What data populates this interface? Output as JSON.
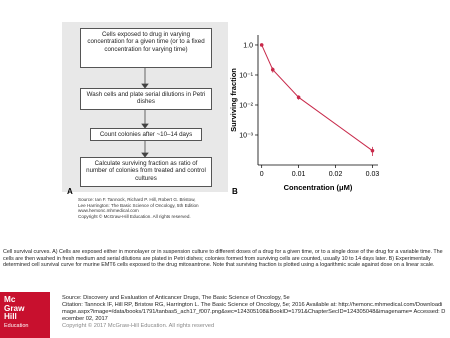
{
  "flowchart": {
    "label": "A",
    "steps": [
      "Cells exposed to drug in varying concentration for a given time (or to a fixed concentration for varying time)",
      "Wash cells and plate serial dilutions in Petri dishes",
      "Count colonies after ~10–14 days",
      "Calculate surviving fraction as ratio of number of colonies from treated and control cultures"
    ]
  },
  "source": [
    "Source: Ian F. Tannock, Richard P. Hill, Robert G. Bristow,",
    "Lee Harrington: The Basic Science of Oncology, 5th Edition",
    "www.hemonc.mhmedical.com",
    "Copyright © McGraw-Hill Education. All rights reserved."
  ],
  "chart_data": {
    "type": "line",
    "panel_label": "B",
    "x_label": "Concentration (μM)",
    "y_label": "Surviving fraction",
    "x": [
      0,
      0.003,
      0.01,
      0.03
    ],
    "series": [
      {
        "color": "#c8294a",
        "values": [
          1.0,
          0.15,
          0.018,
          0.0003
        ],
        "errors": [
          0.1,
          0.03,
          0.003,
          0.0001
        ]
      }
    ],
    "xlim": [
      -0.001,
      0.0315
    ],
    "xticks": [
      0,
      0.01,
      0.02,
      0.03
    ],
    "ylim": [
      0.0001,
      2.15
    ],
    "yticks": [
      {
        "value": 1,
        "label": "1.0"
      },
      {
        "value": 0.1,
        "label": "10⁻¹"
      },
      {
        "value": 0.01,
        "label": "10⁻²"
      },
      {
        "value": 0.001,
        "label": "10⁻³"
      }
    ],
    "log_y": true
  },
  "caption": "Cell survival curves. A) Cells are exposed either in monolayer or in suspension culture to different doses of a drug for a given time, or to a single dose of the drug for a variable time. The cells are then washed in fresh medium and serial dilutions are plated in Petri dishes; colonies formed from surviving cells are counted, usually 10 to 14 days later. B) Experimentally determined cell survival curve for murine EMT6 cells exposed to the drug mitoxantrone. Note that surviving fraction is plotted using a logarithmic scale against dose on a linear scale.",
  "logo": [
    "Mc",
    "Graw",
    "Hill",
    "Education"
  ],
  "footer": [
    "Source: Discovery and Evaluation of Anticancer Drugs, The Basic Science of Oncology, 5e",
    "Citation: Tannock IF, Hill RP, Bristow RG, Harrington L. The Basic Science of Oncology, 5e; 2016 Available at: http://hemonc.mhmedical.com/Downloadimage.aspx?image=/data/books/1791/tanbas5_ach17_f007.png&sec=124305108&BookID=1791&ChapterSecID=124305048&imagename= Accessed: December 02, 2017",
    "Copyright © 2017 McGraw-Hill Education. All rights reserved"
  ]
}
